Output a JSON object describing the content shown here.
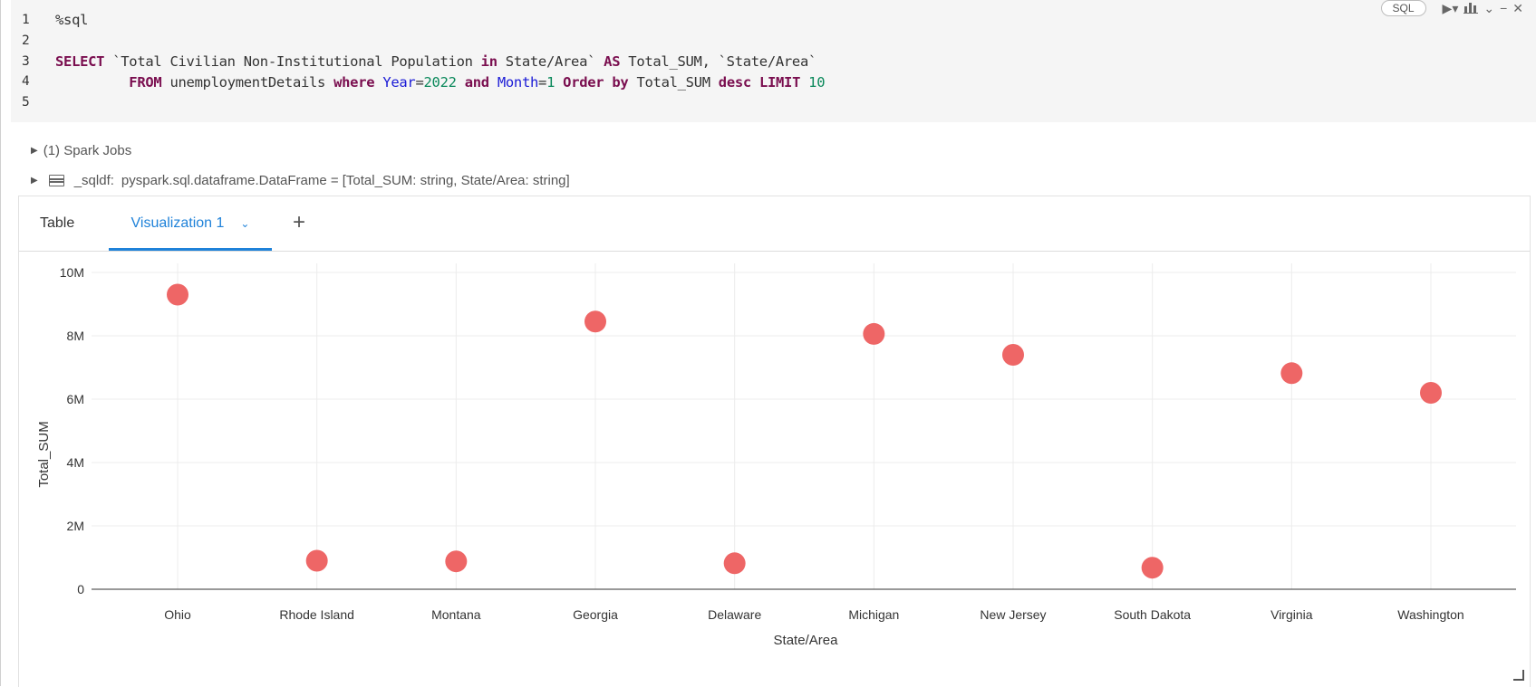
{
  "code_cell": {
    "language_badge": "SQL",
    "line_numbers": [
      "1",
      "2",
      "3",
      "4",
      "5"
    ],
    "lines": {
      "l1": "%sql",
      "l3_kw1": "SELECT",
      "l3_t1": " `Total Civilian Non-Institutional Population ",
      "l3_kw2": "in",
      "l3_t2": " State/Area` ",
      "l3_kw3": "AS",
      "l3_t3": " Total_SUM, `State/Area`",
      "l4_kw1": "FROM",
      "l4_t1": " unemploymentDetails ",
      "l4_kw2": "where",
      "l4_fn1": "Year",
      "l4_t2": "=",
      "l4_n1": "2022",
      "l4_kw3": "and",
      "l4_fn2": "Month",
      "l4_t3": "=",
      "l4_n2": "1",
      "l4_kw4": "Order by",
      "l4_t4": " Total_SUM ",
      "l4_kw5": "desc LIMIT",
      "l4_n3": "10"
    },
    "toolbar_icons": [
      "run-icon",
      "chart-icon",
      "chevron-down-icon",
      "minimize-icon",
      "close-icon"
    ]
  },
  "output": {
    "spark_jobs": "(1) Spark Jobs",
    "df_name": "_sqldf:",
    "df_schema": "pyspark.sql.dataframe.DataFrame = [Total_SUM: string, State/Area: string]"
  },
  "tabs": {
    "table": "Table",
    "viz": "Visualization 1",
    "add": "+"
  },
  "chart_data": {
    "type": "scatter",
    "xlabel": "State/Area",
    "ylabel": "Total_SUM",
    "categories": [
      "Ohio",
      "Rhode Island",
      "Montana",
      "Georgia",
      "Delaware",
      "Michigan",
      "New Jersey",
      "South Dakota",
      "Virginia",
      "Washington"
    ],
    "values": [
      9300000,
      900000,
      880000,
      8450000,
      820000,
      8060000,
      7400000,
      680000,
      6820000,
      6200000
    ],
    "ylim": [
      0,
      10000000
    ],
    "yticks": [
      0,
      2000000,
      4000000,
      6000000,
      8000000,
      10000000
    ],
    "ytick_labels": [
      "0",
      "2M",
      "4M",
      "6M",
      "8M",
      "10M"
    ],
    "grid": true,
    "marker_color": "#ee6666"
  }
}
